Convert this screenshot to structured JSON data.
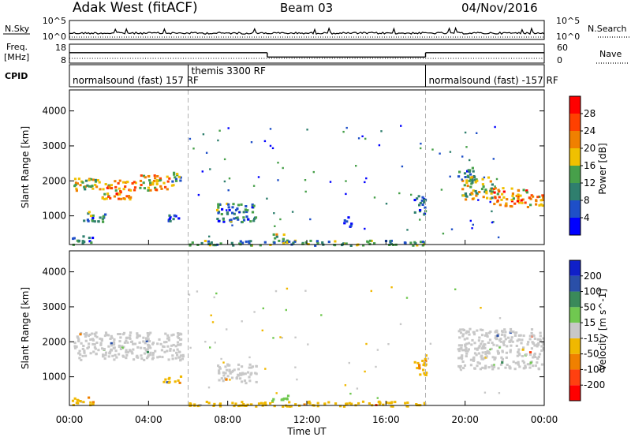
{
  "header": {
    "title": "Adak West (fitACF)",
    "beam": "Beam 03",
    "date": "04/Nov/2016"
  },
  "nsky": {
    "label": "N.Sky",
    "tick_top": "10^5",
    "tick_bottom": "10^0",
    "right_label": "N.Search",
    "right_tick_top": "10^5",
    "right_tick_bottom": "10^0"
  },
  "freq": {
    "label_line1": "Freq.",
    "label_line2": "[MHz]",
    "tick_top": "18",
    "tick_bottom": "8",
    "right_label": "Nave",
    "right_tick_top": "60",
    "right_tick_bottom": "0"
  },
  "cpid": {
    "label": "CPID",
    "segments": [
      {
        "text": "normalsound (fast) 157 RF",
        "start_hour": 0
      },
      {
        "text": "themis 3300 RF",
        "start_hour": 6
      },
      {
        "text": "normalsound (fast) -157 RF",
        "start_hour": 18
      }
    ]
  },
  "power_colorbar": {
    "label": "Power [dB]",
    "ticks": [
      "4",
      "8",
      "12",
      "16",
      "20",
      "24",
      "28"
    ],
    "colors": [
      "#0000ff",
      "#1e4fc8",
      "#2f7f6e",
      "#47a04a",
      "#f0c000",
      "#f08000",
      "#ff4000",
      "#ff0000"
    ]
  },
  "velocity_colorbar": {
    "label": "Velocity [m s^-1]",
    "ticks": [
      "200",
      "100",
      "50",
      "15",
      "-15",
      "-50",
      "-100",
      "-200"
    ],
    "colors": [
      "#1020c8",
      "#2a4fa8",
      "#3a8a5a",
      "#70c850",
      "#c8c8c8",
      "#f0b800",
      "#f08000",
      "#ff4010",
      "#ff0000"
    ]
  },
  "colors": {
    "grey_scatter": "#c4c4bc",
    "boundary": "#b0b0b0"
  },
  "chart_data": {
    "type": "heatmap",
    "xlabel": "Time UT",
    "ylabel": "Slant Range [km]",
    "xticks": [
      "00:00",
      "04:00",
      "08:00",
      "12:00",
      "16:00",
      "20:00",
      "00:00"
    ],
    "yticks": [
      "1000",
      "2000",
      "3000",
      "4000"
    ],
    "xlim_hours": [
      0,
      24
    ],
    "ylim_km": [
      180,
      4600
    ],
    "mode_boundaries_hours": [
      6,
      18
    ],
    "freq_mhz": [
      {
        "start_hour": 0,
        "end_hour": 10,
        "value": 13.5
      },
      {
        "start_hour": 10,
        "end_hour": 18,
        "value": 11.2
      },
      {
        "start_hour": 18,
        "end_hour": 24,
        "value": 13.5
      }
    ],
    "power_regions": [
      {
        "t0": 0.2,
        "t1": 1.6,
        "r0": 1700,
        "r1": 2100,
        "db": 16
      },
      {
        "t0": 1.6,
        "t1": 3.2,
        "r0": 1500,
        "r1": 2050,
        "db": 22
      },
      {
        "t0": 3.2,
        "t1": 5.0,
        "r0": 1750,
        "r1": 2200,
        "db": 20
      },
      {
        "t0": 5.0,
        "t1": 5.6,
        "r0": 1900,
        "r1": 2300,
        "db": 12
      },
      {
        "t0": 0.6,
        "t1": 1.8,
        "r0": 850,
        "r1": 1150,
        "db": 10
      },
      {
        "t0": 4.6,
        "t1": 5.6,
        "r0": 850,
        "r1": 1050,
        "db": 6
      },
      {
        "t0": 7.4,
        "t1": 9.4,
        "r0": 850,
        "r1": 1400,
        "db": 10
      },
      {
        "t0": 10.2,
        "t1": 11.0,
        "r0": 300,
        "r1": 500,
        "db": 14
      },
      {
        "t0": 13.8,
        "t1": 14.2,
        "r0": 700,
        "r1": 1000,
        "db": 6
      },
      {
        "t0": 17.4,
        "t1": 18.0,
        "r0": 1050,
        "r1": 1650,
        "db": 6
      },
      {
        "t0": 19.6,
        "t1": 20.4,
        "r0": 2050,
        "r1": 2400,
        "db": 10
      },
      {
        "t0": 19.8,
        "t1": 21.4,
        "r0": 1500,
        "r1": 2150,
        "db": 16
      },
      {
        "t0": 21.4,
        "t1": 23.1,
        "r0": 1300,
        "r1": 1850,
        "db": 22
      },
      {
        "t0": 23.1,
        "t1": 23.9,
        "r0": 1250,
        "r1": 1650,
        "db": 20
      },
      {
        "t0": 0.1,
        "t1": 1.2,
        "r0": 200,
        "r1": 450,
        "db": 8
      },
      {
        "t0": 6.0,
        "t1": 18.0,
        "r0": 180,
        "r1": 320,
        "db": 12
      }
    ],
    "velocity_regions": [
      {
        "t0": 0.2,
        "t1": 5.7,
        "r0": 1500,
        "r1": 2300,
        "v": 0
      },
      {
        "t0": 7.4,
        "t1": 9.4,
        "r0": 850,
        "r1": 1400,
        "v": 0
      },
      {
        "t0": 0.1,
        "t1": 1.2,
        "r0": 200,
        "r1": 450,
        "v": -40
      },
      {
        "t0": 4.6,
        "t1": 5.6,
        "r0": 850,
        "r1": 1050,
        "v": -40
      },
      {
        "t0": 6.0,
        "t1": 18.0,
        "r0": 180,
        "r1": 320,
        "v": -30
      },
      {
        "t0": 10.2,
        "t1": 11.0,
        "r0": 300,
        "r1": 500,
        "v": 30
      },
      {
        "t0": 17.4,
        "t1": 18.0,
        "r0": 1050,
        "r1": 1650,
        "v": -40
      },
      {
        "t0": 19.6,
        "t1": 23.9,
        "r0": 1250,
        "r1": 2400,
        "v": 0
      }
    ]
  }
}
